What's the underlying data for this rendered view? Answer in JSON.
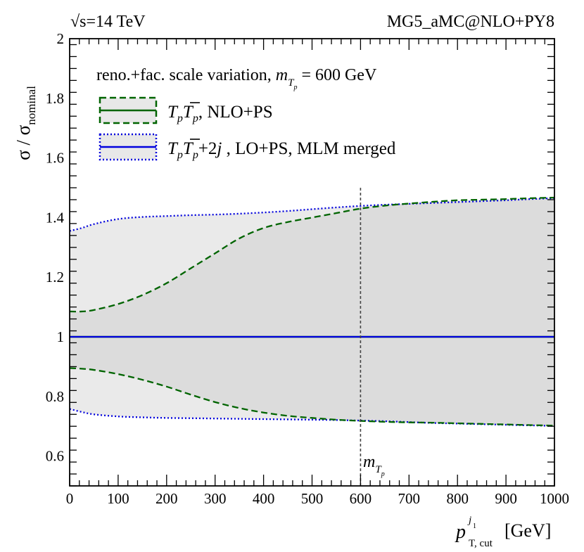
{
  "header": {
    "left_label": "=14 TeV",
    "left_label_prefix": "√s",
    "right_label": "MG5_aMC@NLO+PY8"
  },
  "chart_data": {
    "type": "line",
    "title": "",
    "xlabel": "p_T,cut^{j1} [GeV]",
    "xlabel_parts": {
      "symbol": "p",
      "subscript": "T, cut",
      "superscript": "j",
      "superscript_sub": "1",
      "unit": "[GeV]"
    },
    "ylabel": "σ / σnominal",
    "ylabel_parts": {
      "main": "σ / σ",
      "subscript": "nominal"
    },
    "xlim": [
      0,
      1000
    ],
    "ylim": [
      0.5,
      2.0
    ],
    "x_ticks": [
      0,
      100,
      200,
      300,
      400,
      500,
      600,
      700,
      800,
      900,
      1000
    ],
    "y_ticks": [
      0.6,
      0.8,
      1,
      1.2,
      1.4,
      1.6,
      1.8,
      2
    ],
    "y_tick_labels": [
      "0.6",
      "0.8",
      "1",
      "1.2",
      "1.4",
      "1.6",
      "1.8",
      "2"
    ],
    "x_tick_labels": [
      "0",
      "100",
      "200",
      "300",
      "400",
      "500",
      "600",
      "700",
      "800",
      "900",
      "1000"
    ],
    "annotations": {
      "legend_header": "reno.+fac. scale variation, ",
      "legend_header_mass": "= 600 GeV",
      "vline_x": 600,
      "vline_label": "m",
      "vline_label_sub": "T",
      "vline_label_subsub": "p"
    },
    "legend": {
      "placement": "top-left",
      "entries": [
        {
          "label_math": "TpT̄p",
          "label_text": ", NLO+PS"
        },
        {
          "label_math": "TpT̄p+2j",
          "label_text": " , LO+PS, MLM merged"
        }
      ]
    },
    "series": [
      {
        "name": "TpTpbar NLO+PS",
        "color": "#006400",
        "style": "dashed",
        "nominal": 1.0,
        "x": [
          0,
          25,
          50,
          100,
          150,
          200,
          250,
          300,
          350,
          400,
          450,
          500,
          550,
          600,
          650,
          700,
          750,
          800,
          850,
          900,
          950,
          1000
        ],
        "upper": [
          1.085,
          1.085,
          1.09,
          1.11,
          1.14,
          1.18,
          1.23,
          1.28,
          1.33,
          1.365,
          1.385,
          1.4,
          1.415,
          1.43,
          1.44,
          1.447,
          1.453,
          1.458,
          1.46,
          1.462,
          1.465,
          1.467
        ],
        "lower": [
          0.895,
          0.893,
          0.889,
          0.875,
          0.856,
          0.833,
          0.806,
          0.781,
          0.761,
          0.746,
          0.735,
          0.728,
          0.722,
          0.718,
          0.715,
          0.713,
          0.712,
          0.71,
          0.708,
          0.706,
          0.704,
          0.702
        ]
      },
      {
        "name": "TpTpbar+2j LO+PS MLM merged",
        "color": "#0000dd",
        "style": "dotted",
        "nominal": 1.0,
        "x": [
          0,
          25,
          50,
          100,
          150,
          200,
          250,
          300,
          350,
          400,
          450,
          500,
          550,
          600,
          650,
          700,
          750,
          800,
          850,
          900,
          950,
          1000
        ],
        "upper": [
          1.355,
          1.365,
          1.378,
          1.395,
          1.402,
          1.405,
          1.408,
          1.41,
          1.413,
          1.417,
          1.422,
          1.428,
          1.434,
          1.439,
          1.443,
          1.446,
          1.449,
          1.452,
          1.455,
          1.458,
          1.462,
          1.465
        ],
        "lower": [
          0.758,
          0.748,
          0.74,
          0.733,
          0.73,
          0.728,
          0.727,
          0.726,
          0.725,
          0.724,
          0.723,
          0.722,
          0.721,
          0.719,
          0.717,
          0.714,
          0.711,
          0.709,
          0.707,
          0.705,
          0.703,
          0.701
        ]
      }
    ]
  }
}
